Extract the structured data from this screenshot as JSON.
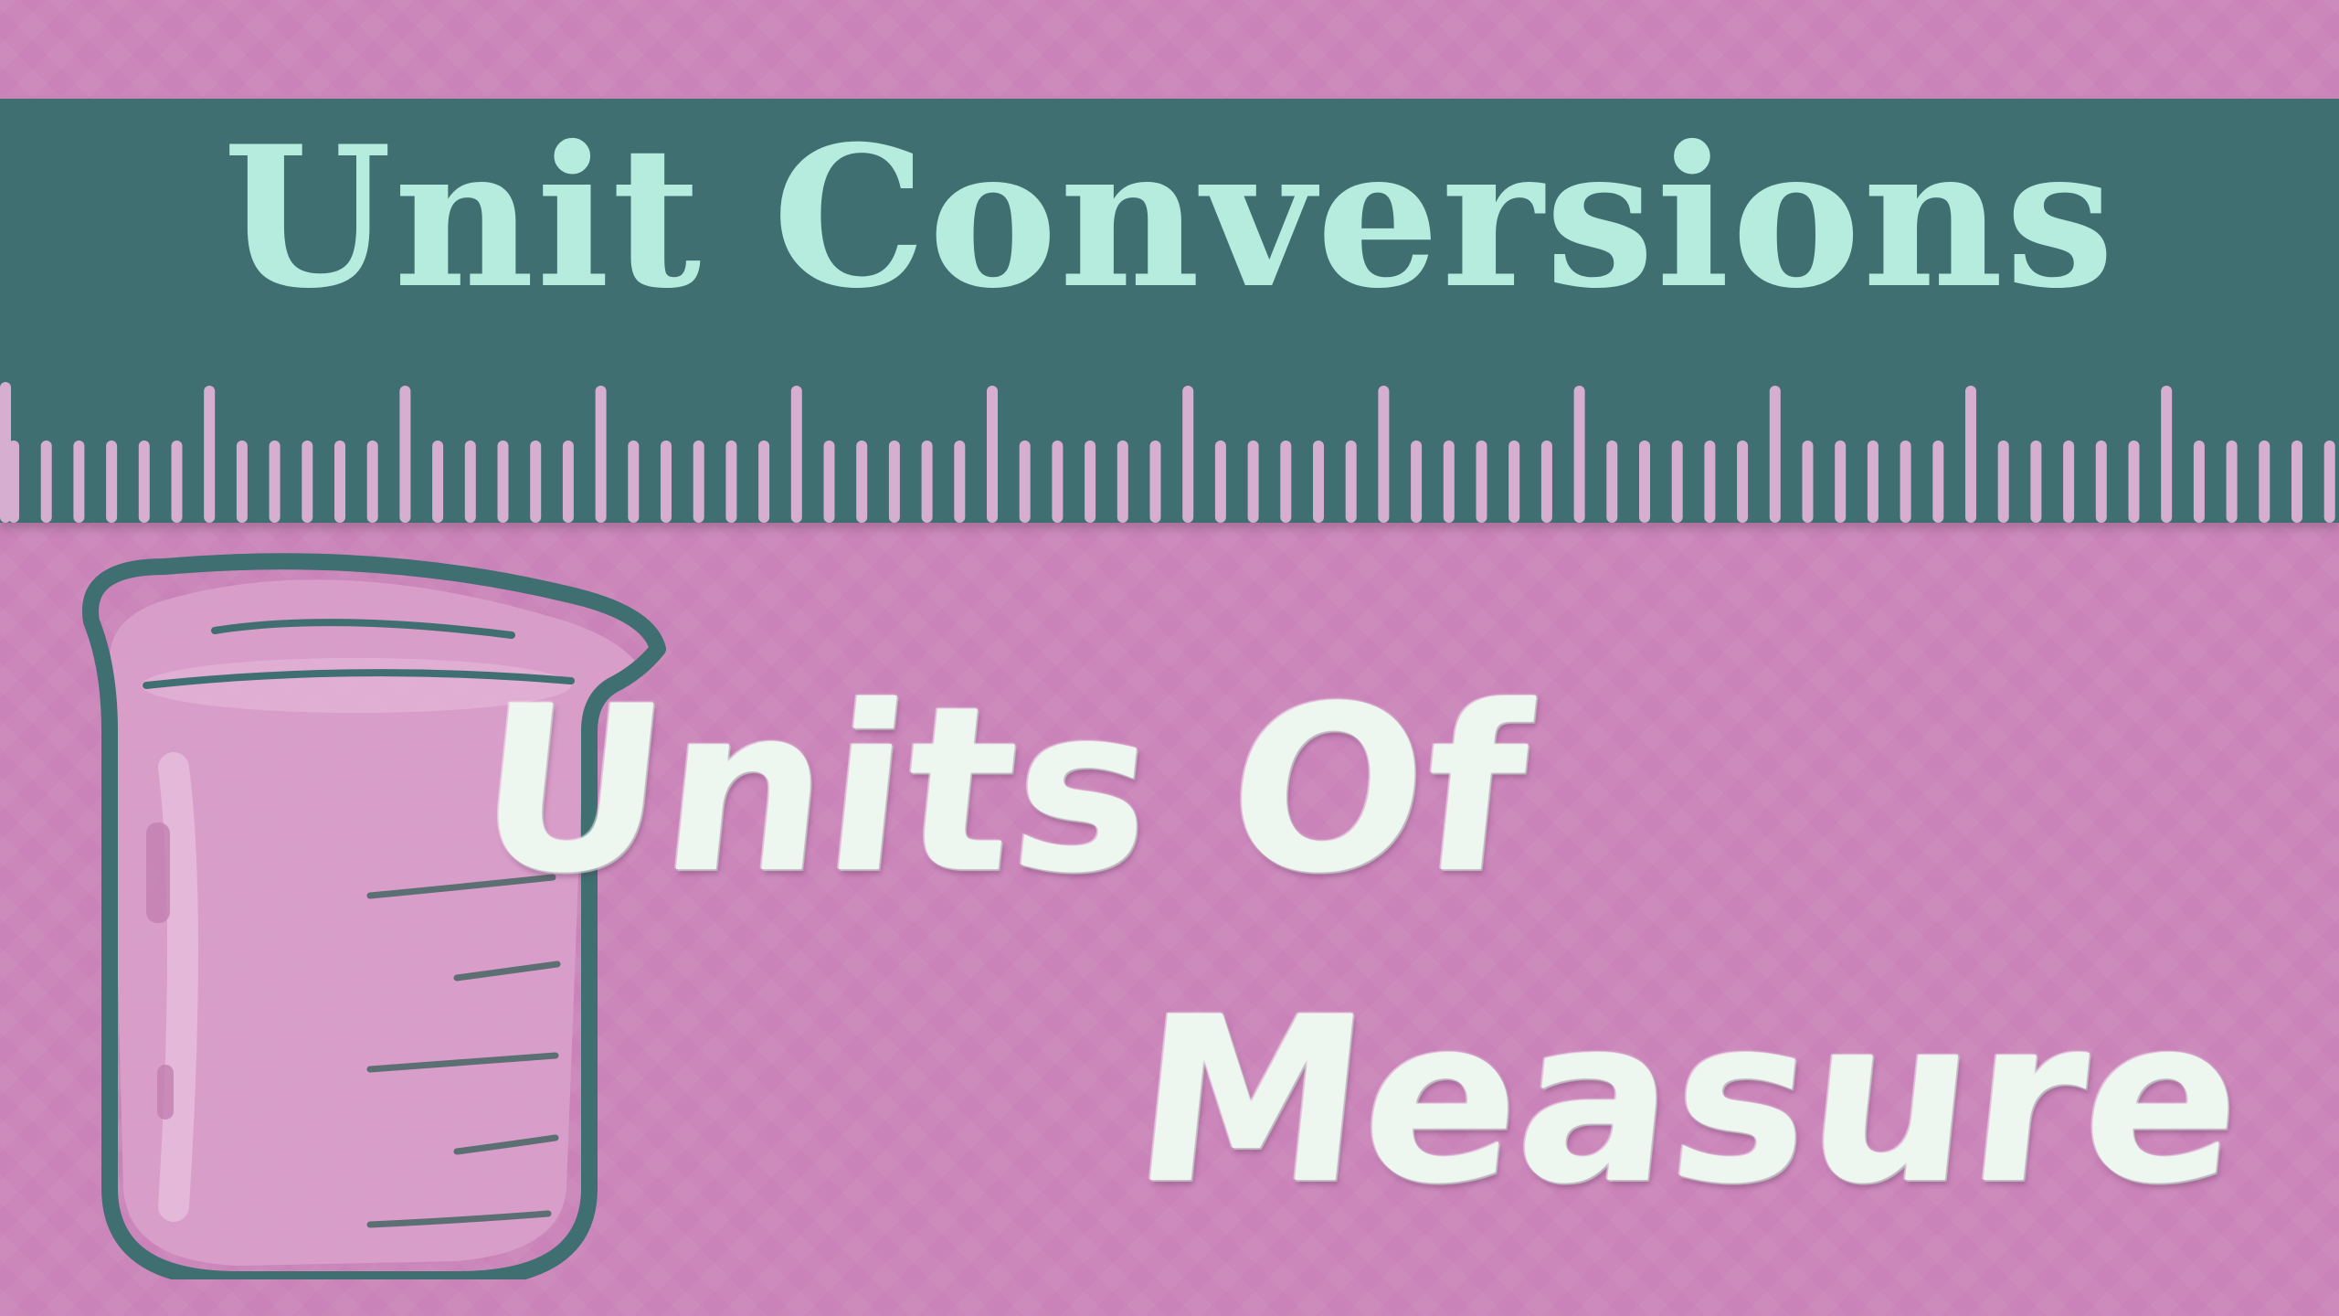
{
  "banner": {
    "title": "Unit Conversions"
  },
  "chalk_text": {
    "line1": "Units Of",
    "line2": "Measure"
  },
  "colors": {
    "background": "#c983b8",
    "banner": "#3f6f70",
    "title": "#b5ecdd",
    "ruler_ticks": "#d6afd0",
    "beaker_outline": "#3f6f70",
    "beaker_fill": "#d9a0cb",
    "chalk": "#eef6f0"
  },
  "icons": [
    "ruler-ticks-icon",
    "beaker-icon"
  ]
}
